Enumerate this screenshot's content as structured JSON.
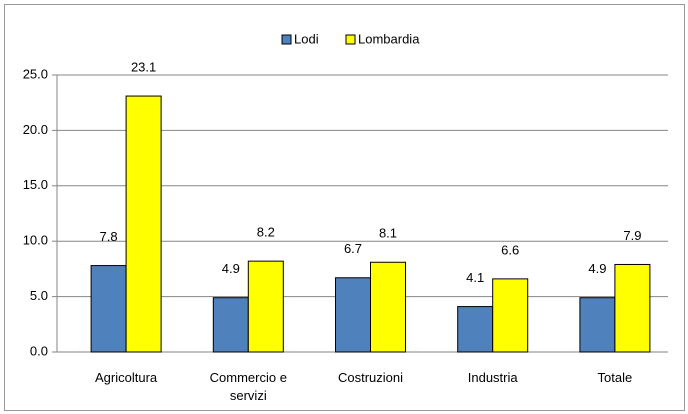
{
  "chart_data": {
    "type": "bar",
    "categories": [
      "Agricoltura",
      "Commercio e servizi",
      "Costruzioni",
      "Industria",
      "Totale"
    ],
    "series": [
      {
        "name": "Lodi",
        "color": "#4f81bd",
        "values": [
          7.8,
          4.9,
          6.7,
          4.1,
          4.9
        ]
      },
      {
        "name": "Lombardia",
        "color": "#ffff00",
        "values": [
          23.1,
          8.2,
          8.1,
          6.6,
          7.9
        ]
      }
    ],
    "ylim": [
      0,
      25
    ],
    "yticks": [
      {
        "value": 0,
        "label": "0.0"
      },
      {
        "value": 5,
        "label": "5.0"
      },
      {
        "value": 10,
        "label": "10.0"
      },
      {
        "value": 15,
        "label": "15.0"
      },
      {
        "value": 20,
        "label": "20.0"
      },
      {
        "value": 25,
        "label": "25.0"
      }
    ],
    "grid": true,
    "legend": "top"
  }
}
